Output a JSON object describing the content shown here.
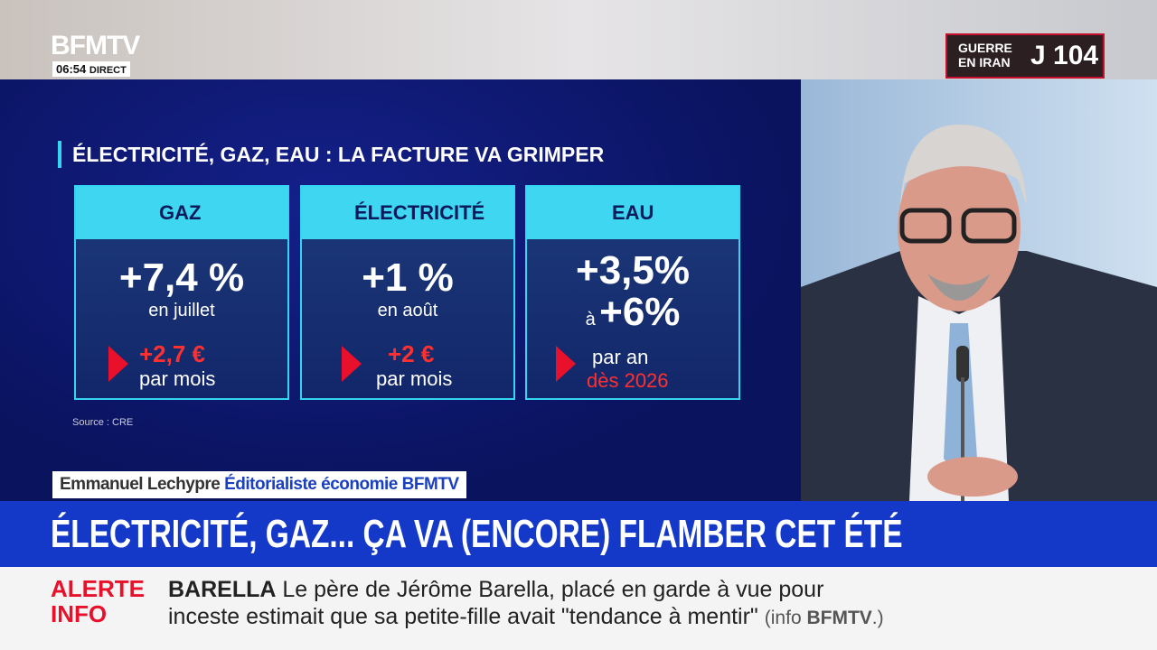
{
  "logo": {
    "brand": "BFMTV",
    "time": "06:54",
    "live": "DIRECT"
  },
  "badge": {
    "line1": "GUERRE",
    "line2": "EN IRAN",
    "day": "J 104"
  },
  "panel": {
    "title": "ÉLECTRICITÉ, GAZ, EAU : LA FACTURE VA GRIMPER",
    "source": "Source : CRE",
    "cards": [
      {
        "label": "GAZ",
        "rate": "+7,4 %",
        "when": "en juillet",
        "amount": "+2,7 €",
        "period": "par mois"
      },
      {
        "label": "ÉLECTRICITÉ",
        "rate": "+1 %",
        "when": "en août",
        "amount": "+2 €",
        "period": "par mois"
      },
      {
        "label": "EAU",
        "rate": "+3,5%",
        "joiner": "à",
        "rate_high": "+6%",
        "period": "par an",
        "since": "dès 2026"
      }
    ]
  },
  "guest": {
    "name": "Emmanuel Lechypre",
    "role": "Éditorialiste économie BFMTV"
  },
  "headline": "ÉLECTRICITÉ, GAZ... ÇA VA (ENCORE) FLAMBER CET ÉTÉ",
  "ticker": {
    "alert1": "ALERTE",
    "alert2": "INFO",
    "topic": "BARELLA",
    "line1": "Le père de Jérôme Barella, placé en garde à vue pour",
    "line2": "inceste estimait que sa petite-fille avait \"tendance à mentir\"",
    "source_open": "(info",
    "source_brand": "BFMTV",
    "source_close": ".)"
  }
}
